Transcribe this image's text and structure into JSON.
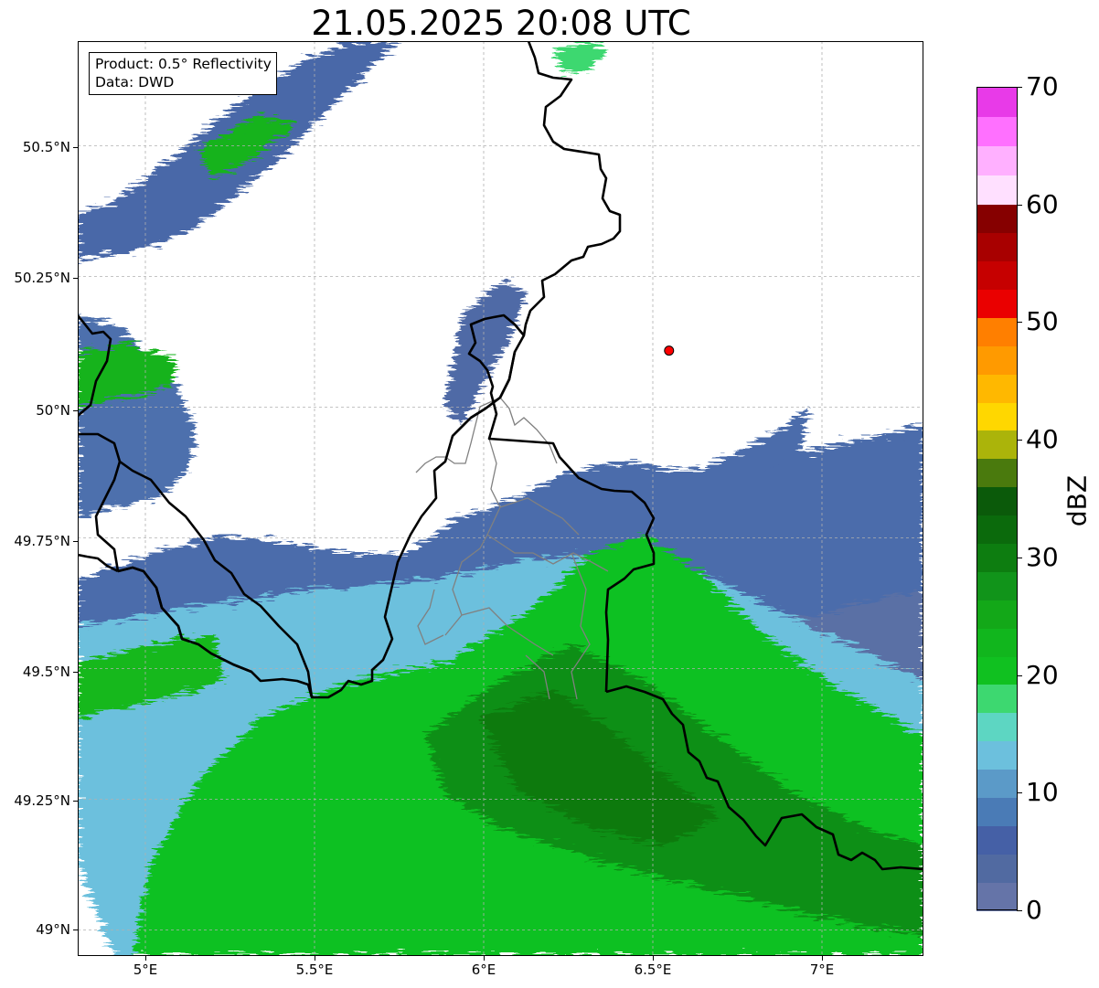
{
  "title": "21.05.2025 20:08 UTC",
  "info": {
    "product": "Product: 0.5° Reflectivity",
    "source": "Data: DWD"
  },
  "axes": {
    "lat_labels": [
      "50.5°N",
      "50.25°N",
      "50°N",
      "49.75°N",
      "49.5°N",
      "49.25°N",
      "49°N"
    ],
    "lon_labels": [
      "5°E",
      "5.5°E",
      "6°E",
      "6.5°E",
      "7°E"
    ]
  },
  "map_extent": {
    "lon": [
      4.8,
      7.3
    ],
    "lat": [
      48.95,
      50.7
    ]
  },
  "station_marker": {
    "lon": 6.548,
    "lat": 50.108,
    "color": "#ff0000"
  },
  "colorbar": {
    "unit": "dBZ",
    "range": [
      0,
      70
    ],
    "tick_labels": [
      "0",
      "10",
      "20",
      "30",
      "40",
      "50",
      "60",
      "70"
    ],
    "colors": [
      "#6574a8",
      "#516aa1",
      "#4560a6",
      "#4a7bb6",
      "#5b9ac8",
      "#6cc0dd",
      "#5dd6c2",
      "#3dd870",
      "#10c120",
      "#11b61d",
      "#13a818",
      "#11941a",
      "#0d7d10",
      "#0b6a0c",
      "#0b5a0a",
      "#4a7a0d",
      "#abb40a",
      "#ffd700",
      "#ffb800",
      "#ff9a00",
      "#ff7f00",
      "#ea0000",
      "#c60000",
      "#a80000",
      "#860000",
      "#ffe0ff",
      "#ffb0ff",
      "#ff70ff",
      "#e83ae8"
    ]
  },
  "colors": {
    "border": "#000000",
    "district": "#808080",
    "grid": "#b0b0b0"
  }
}
